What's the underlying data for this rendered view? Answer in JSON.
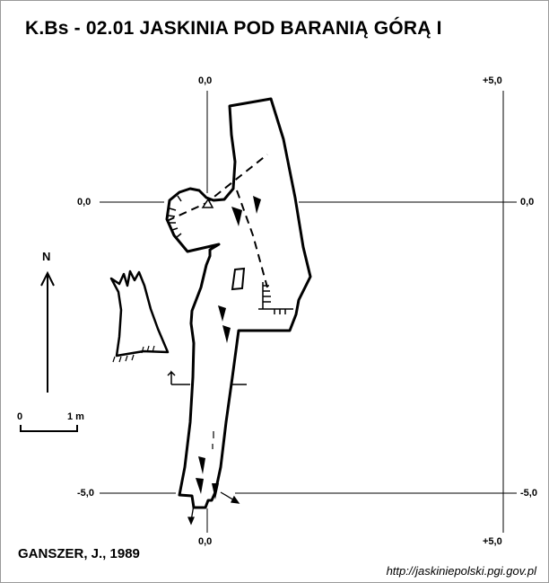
{
  "title": "K.Bs - 02.01  JASKINIA POD BARANIĄ GÓRĄ  I",
  "author": "GANSZER, J., 1989",
  "source_url": "http://jaskiniepolski.pgi.gov.pl",
  "grid": {
    "x_top_left": "0,0",
    "x_top_right": "+5,0",
    "x_bottom_left": "0,0",
    "x_bottom_right": "+5,0",
    "y_left_top": "0,0",
    "y_right_top": "0,0",
    "y_left_bottom": "-5,0",
    "y_right_bottom": "-5,0"
  },
  "north_label": "N",
  "scale": {
    "start": "0",
    "end": "1 m"
  },
  "colors": {
    "ink": "#000000",
    "paper": "#ffffff",
    "frame": "#9a9a9a"
  },
  "icons": [
    "north-arrow-icon",
    "scale-bar-icon",
    "datum-triangle-icon",
    "slope-arrow-icon"
  ]
}
